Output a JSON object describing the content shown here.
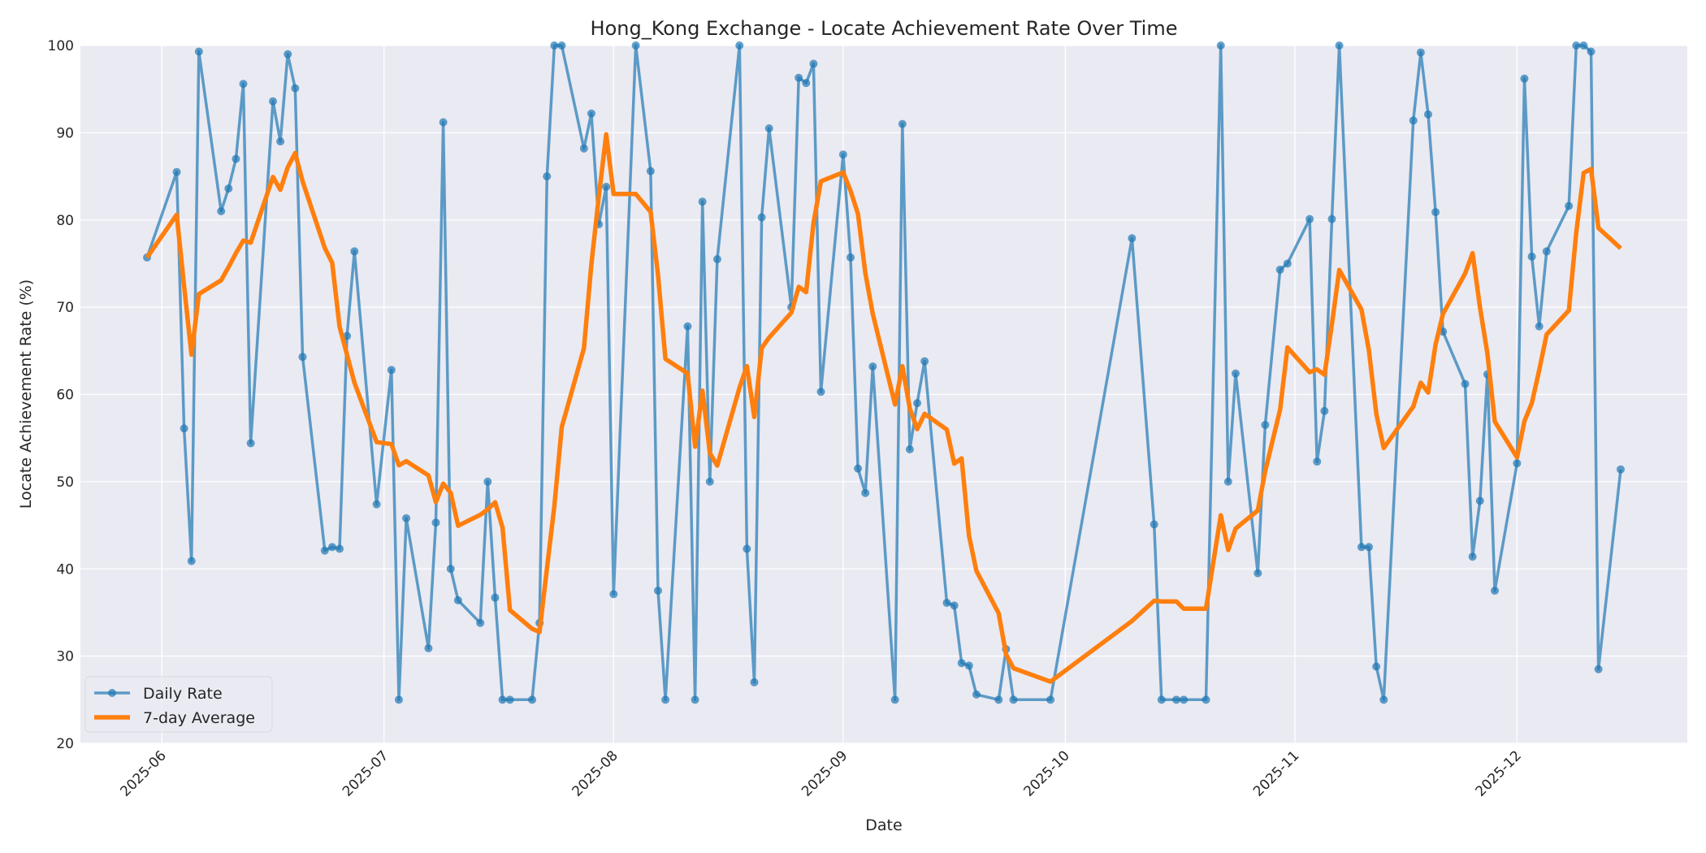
{
  "chart_data": {
    "type": "line",
    "title": "Hong_Kong Exchange - Locate Achievement Rate Over Time",
    "xlabel": "Date",
    "ylabel": "Locate Achievement Rate (%)",
    "xlim": [
      "2025-05-21",
      "2025-12-24"
    ],
    "ylim": [
      20,
      100
    ],
    "yticks": [
      20,
      30,
      40,
      50,
      60,
      70,
      80,
      90,
      100
    ],
    "xticks": [
      "2025-06",
      "2025-07",
      "2025-08",
      "2025-09",
      "2025-10",
      "2025-11",
      "2025-12"
    ],
    "grid": true,
    "legend_position": "bottom-left",
    "rolling_window": 7,
    "colors": {
      "daily": "#1f77b4",
      "average": "#ff7f0e",
      "background": "#eaeaf2",
      "grid": "#ffffff"
    },
    "series": [
      {
        "name": "Daily Rate",
        "x": [
          "2025-05-30",
          "2025-06-03",
          "2025-06-04",
          "2025-06-05",
          "2025-06-06",
          "2025-06-09",
          "2025-06-10",
          "2025-06-11",
          "2025-06-12",
          "2025-06-13",
          "2025-06-16",
          "2025-06-17",
          "2025-06-18",
          "2025-06-19",
          "2025-06-20",
          "2025-06-23",
          "2025-06-24",
          "2025-06-25",
          "2025-06-26",
          "2025-06-27",
          "2025-06-30",
          "2025-07-02",
          "2025-07-03",
          "2025-07-04",
          "2025-07-07",
          "2025-07-08",
          "2025-07-09",
          "2025-07-10",
          "2025-07-11",
          "2025-07-14",
          "2025-07-15",
          "2025-07-16",
          "2025-07-17",
          "2025-07-18",
          "2025-07-21",
          "2025-07-22",
          "2025-07-23",
          "2025-07-24",
          "2025-07-25",
          "2025-07-28",
          "2025-07-29",
          "2025-07-30",
          "2025-07-31",
          "2025-08-01",
          "2025-08-04",
          "2025-08-06",
          "2025-08-07",
          "2025-08-08",
          "2025-08-11",
          "2025-08-12",
          "2025-08-13",
          "2025-08-14",
          "2025-08-15",
          "2025-08-18",
          "2025-08-19",
          "2025-08-20",
          "2025-08-21",
          "2025-08-22",
          "2025-08-25",
          "2025-08-26",
          "2025-08-27",
          "2025-08-28",
          "2025-08-29",
          "2025-09-01",
          "2025-09-02",
          "2025-09-03",
          "2025-09-04",
          "2025-09-05",
          "2025-09-08",
          "2025-09-09",
          "2025-09-10",
          "2025-09-11",
          "2025-09-12",
          "2025-09-15",
          "2025-09-16",
          "2025-09-17",
          "2025-09-18",
          "2025-09-19",
          "2025-09-22",
          "2025-09-23",
          "2025-09-24",
          "2025-09-29",
          "2025-10-10",
          "2025-10-13",
          "2025-10-14",
          "2025-10-16",
          "2025-10-17",
          "2025-10-20",
          "2025-10-22",
          "2025-10-23",
          "2025-10-24",
          "2025-10-27",
          "2025-10-28",
          "2025-10-30",
          "2025-10-31",
          "2025-11-03",
          "2025-11-04",
          "2025-11-05",
          "2025-11-06",
          "2025-11-07",
          "2025-11-10",
          "2025-11-11",
          "2025-11-12",
          "2025-11-13",
          "2025-11-17",
          "2025-11-18",
          "2025-11-19",
          "2025-11-20",
          "2025-11-21",
          "2025-11-24",
          "2025-11-25",
          "2025-11-26",
          "2025-11-27",
          "2025-11-28",
          "2025-12-01",
          "2025-12-02",
          "2025-12-03",
          "2025-12-04",
          "2025-12-05",
          "2025-12-08",
          "2025-12-09",
          "2025-12-10",
          "2025-12-11",
          "2025-12-12",
          "2025-12-15"
        ],
        "values": [
          75.7,
          85.5,
          56.1,
          40.9,
          99.3,
          81.0,
          83.6,
          87.0,
          95.6,
          54.4,
          93.6,
          89.0,
          99.0,
          95.1,
          64.3,
          42.1,
          42.5,
          42.3,
          66.7,
          76.4,
          47.4,
          62.8,
          25.0,
          45.8,
          30.9,
          45.3,
          91.2,
          40.0,
          36.4,
          33.8,
          50.0,
          36.7,
          25.0,
          25.0,
          25.0,
          33.8,
          85.0,
          100,
          100,
          88.2,
          92.2,
          79.5,
          83.8,
          37.1,
          100,
          85.6,
          37.5,
          25.0,
          67.8,
          25.0,
          82.1,
          50.0,
          75.5,
          100,
          42.3,
          27.0,
          80.3,
          90.5,
          70.0,
          96.3,
          95.7,
          97.9,
          60.3,
          87.5,
          75.7,
          51.5,
          48.7,
          63.2,
          25.0,
          91.0,
          53.7,
          59.0,
          63.8,
          36.1,
          35.8,
          29.2,
          28.9,
          25.6,
          25.0,
          30.8,
          25.0,
          25.0,
          77.9,
          45.1,
          25.0,
          25.0,
          25.0,
          25.0,
          100,
          50.0,
          62.4,
          39.5,
          56.5,
          74.3,
          75.0,
          80.1,
          52.3,
          58.1,
          80.1,
          100,
          42.5,
          42.5,
          28.8,
          25.0,
          91.4,
          99.2,
          92.1,
          80.9,
          67.2,
          61.2,
          41.4,
          47.8,
          62.3,
          37.5,
          52.1,
          96.2,
          75.8,
          67.8,
          76.4,
          81.6,
          100,
          100,
          99.3,
          28.5,
          51.4
        ]
      },
      {
        "name": "7-day Average",
        "derived_from": "Daily Rate"
      }
    ]
  }
}
